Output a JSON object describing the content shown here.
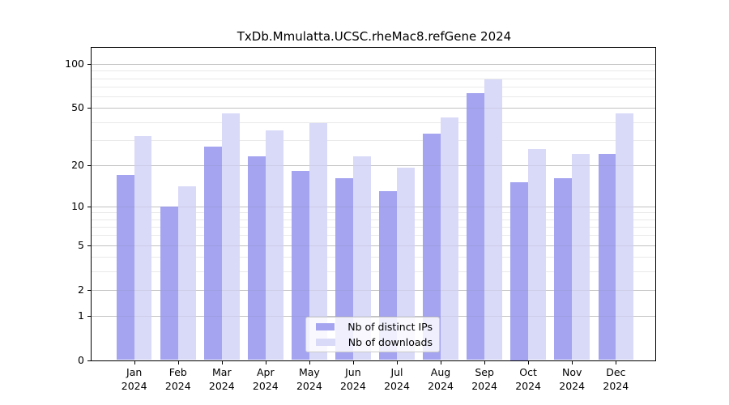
{
  "chart_data": {
    "type": "bar",
    "title": "TxDb.Mmulatta.UCSC.rheMac8.refGene 2024",
    "categories": [
      "Jan",
      "Feb",
      "Mar",
      "Apr",
      "May",
      "Jun",
      "Jul",
      "Aug",
      "Sep",
      "Oct",
      "Nov",
      "Dec"
    ],
    "x_year_label": "2024",
    "series": [
      {
        "name": "Nb of distinct IPs",
        "color": "#a4a4f0",
        "values": [
          17,
          10,
          27,
          23,
          18,
          16,
          13,
          33,
          63,
          15,
          16,
          24
        ]
      },
      {
        "name": "Nb of downloads",
        "color": "#d9d9f8",
        "values": [
          32,
          14,
          46,
          35,
          39,
          23,
          19,
          43,
          79,
          26,
          24,
          46
        ]
      }
    ],
    "yscale": "log10(1+x)",
    "ylim": [
      0,
      132
    ],
    "y_major_ticks": [
      0,
      1,
      2,
      5,
      10,
      20,
      50,
      100
    ],
    "y_minor_gridlines": [
      3,
      4,
      6,
      7,
      8,
      9,
      30,
      40,
      60,
      70,
      80,
      90
    ],
    "grid": "horizontal",
    "legend": {
      "position": "bottom-center",
      "entries": [
        "Nb of distinct IPs",
        "Nb of downloads"
      ]
    }
  },
  "colors": {
    "background": "#ffffff",
    "major_grid": "#cdcdcd",
    "minor_grid": "#e9e9e9",
    "spine": "#000000",
    "text": "#000000",
    "legend_border": "#cccccc"
  }
}
